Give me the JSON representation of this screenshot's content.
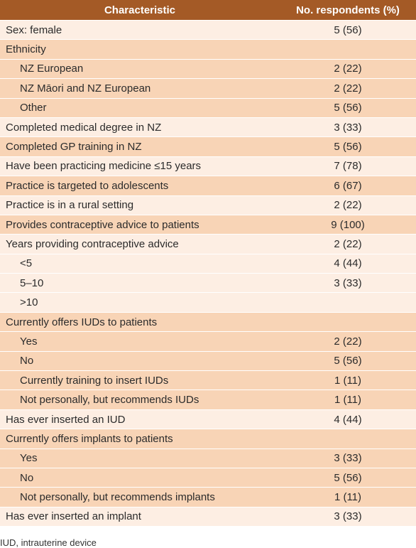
{
  "table": {
    "headers": [
      "Characteristic",
      "No. respondents (%)"
    ],
    "rows": [
      {
        "label": "Sex: female",
        "value": "5 (56)",
        "indent": false,
        "shade": "w"
      },
      {
        "label": "Ethnicity",
        "value": "",
        "indent": false,
        "shade": "d"
      },
      {
        "label": "NZ European",
        "value": "2 (22)",
        "indent": true,
        "shade": "d"
      },
      {
        "label": "NZ Māori and NZ European",
        "value": "2 (22)",
        "indent": true,
        "shade": "d"
      },
      {
        "label": "Other",
        "value": "5 (56)",
        "indent": true,
        "shade": "d"
      },
      {
        "label": "Completed medical degree in NZ",
        "value": "3 (33)",
        "indent": false,
        "shade": "w"
      },
      {
        "label": "Completed GP training in NZ",
        "value": "5 (56)",
        "indent": false,
        "shade": "d"
      },
      {
        "label": "Have been practicing medicine ≤15 years",
        "value": "7 (78)",
        "indent": false,
        "shade": "w"
      },
      {
        "label": "Practice is targeted to adolescents",
        "value": "6 (67)",
        "indent": false,
        "shade": "d"
      },
      {
        "label": "Practice is in a rural setting",
        "value": "2 (22)",
        "indent": false,
        "shade": "w"
      },
      {
        "label": "Provides contraceptive advice to patients",
        "value": "9 (100)",
        "indent": false,
        "shade": "d"
      },
      {
        "label": "Years providing contraceptive advice",
        "value": "2 (22)",
        "indent": false,
        "shade": "w"
      },
      {
        "label": "<5",
        "value": "4 (44)",
        "indent": true,
        "shade": "w"
      },
      {
        "label": "5–10",
        "value": "3 (33)",
        "indent": true,
        "shade": "w"
      },
      {
        "label": ">10",
        "value": "",
        "indent": true,
        "shade": "w"
      },
      {
        "label": "Currently offers IUDs to patients",
        "value": "",
        "indent": false,
        "shade": "d"
      },
      {
        "label": "Yes",
        "value": "2 (22)",
        "indent": true,
        "shade": "d"
      },
      {
        "label": "No",
        "value": "5 (56)",
        "indent": true,
        "shade": "d"
      },
      {
        "label": "Currently training to insert IUDs",
        "value": "1 (11)",
        "indent": true,
        "shade": "d"
      },
      {
        "label": "Not personally, but recommends IUDs",
        "value": "1 (11)",
        "indent": true,
        "shade": "d"
      },
      {
        "label": "Has ever inserted an IUD",
        "value": "4 (44)",
        "indent": false,
        "shade": "w"
      },
      {
        "label": "Currently offers implants to patients",
        "value": "",
        "indent": false,
        "shade": "d"
      },
      {
        "label": "Yes",
        "value": "3 (33)",
        "indent": true,
        "shade": "d"
      },
      {
        "label": "No",
        "value": "5 (56)",
        "indent": true,
        "shade": "d"
      },
      {
        "label": "Not personally, but recommends implants",
        "value": "1 (11)",
        "indent": true,
        "shade": "d"
      },
      {
        "label": "Has ever inserted an implant",
        "value": "3 (33)",
        "indent": false,
        "shade": "w"
      }
    ]
  },
  "footnote": "IUD, intrauterine device",
  "colors": {
    "header": "#a45a26",
    "light_row": "#fdeee3",
    "dark_row": "#f8d4b6"
  }
}
